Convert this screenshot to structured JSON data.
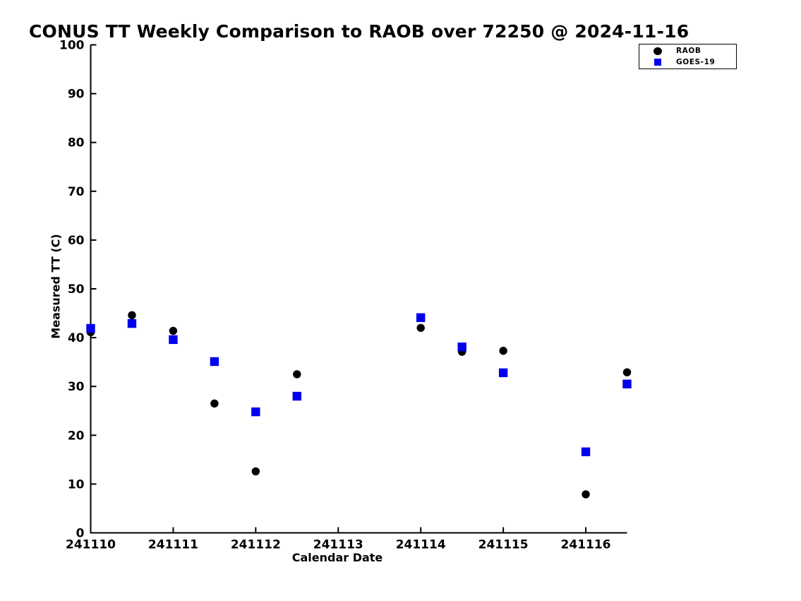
{
  "chart_data": {
    "type": "scatter",
    "title": "CONUS TT Weekly Comparison to RAOB over 72250 @ 2024-11-16",
    "xlabel": "Calendar Date",
    "ylabel": "Measured TT (C)",
    "xlim": [
      241110,
      241116.5
    ],
    "ylim": [
      0,
      100
    ],
    "grid": false,
    "background_color": "#ffffff",
    "legend_position": "top-right",
    "x_ticks": [
      241110,
      241111,
      241112,
      241113,
      241114,
      241115,
      241116
    ],
    "x_tick_labels": [
      "241110",
      "241111",
      "241112",
      "241113",
      "241114",
      "241115",
      "241116"
    ],
    "y_ticks": [
      0,
      10,
      20,
      30,
      40,
      50,
      60,
      70,
      80,
      90,
      100
    ],
    "y_tick_labels": [
      "0",
      "10",
      "20",
      "30",
      "40",
      "50",
      "60",
      "70",
      "80",
      "90",
      "100"
    ],
    "x": [
      241110,
      241110.5,
      241111,
      241111.5,
      241112,
      241112.5,
      241114,
      241114.5,
      241115,
      241116,
      241116.5
    ],
    "series": [
      {
        "name": "RAOB",
        "marker": "circle",
        "color": "#000000",
        "values": [
          41.1,
          44.6,
          41.4,
          26.5,
          12.6,
          32.5,
          42.0,
          37.1,
          37.3,
          7.9,
          32.9
        ]
      },
      {
        "name": "GOES-19",
        "marker": "square",
        "color": "#0000ee",
        "values": [
          41.9,
          42.9,
          39.6,
          35.1,
          24.8,
          28.0,
          44.1,
          38.1,
          32.8,
          16.6,
          30.5
        ]
      }
    ]
  }
}
